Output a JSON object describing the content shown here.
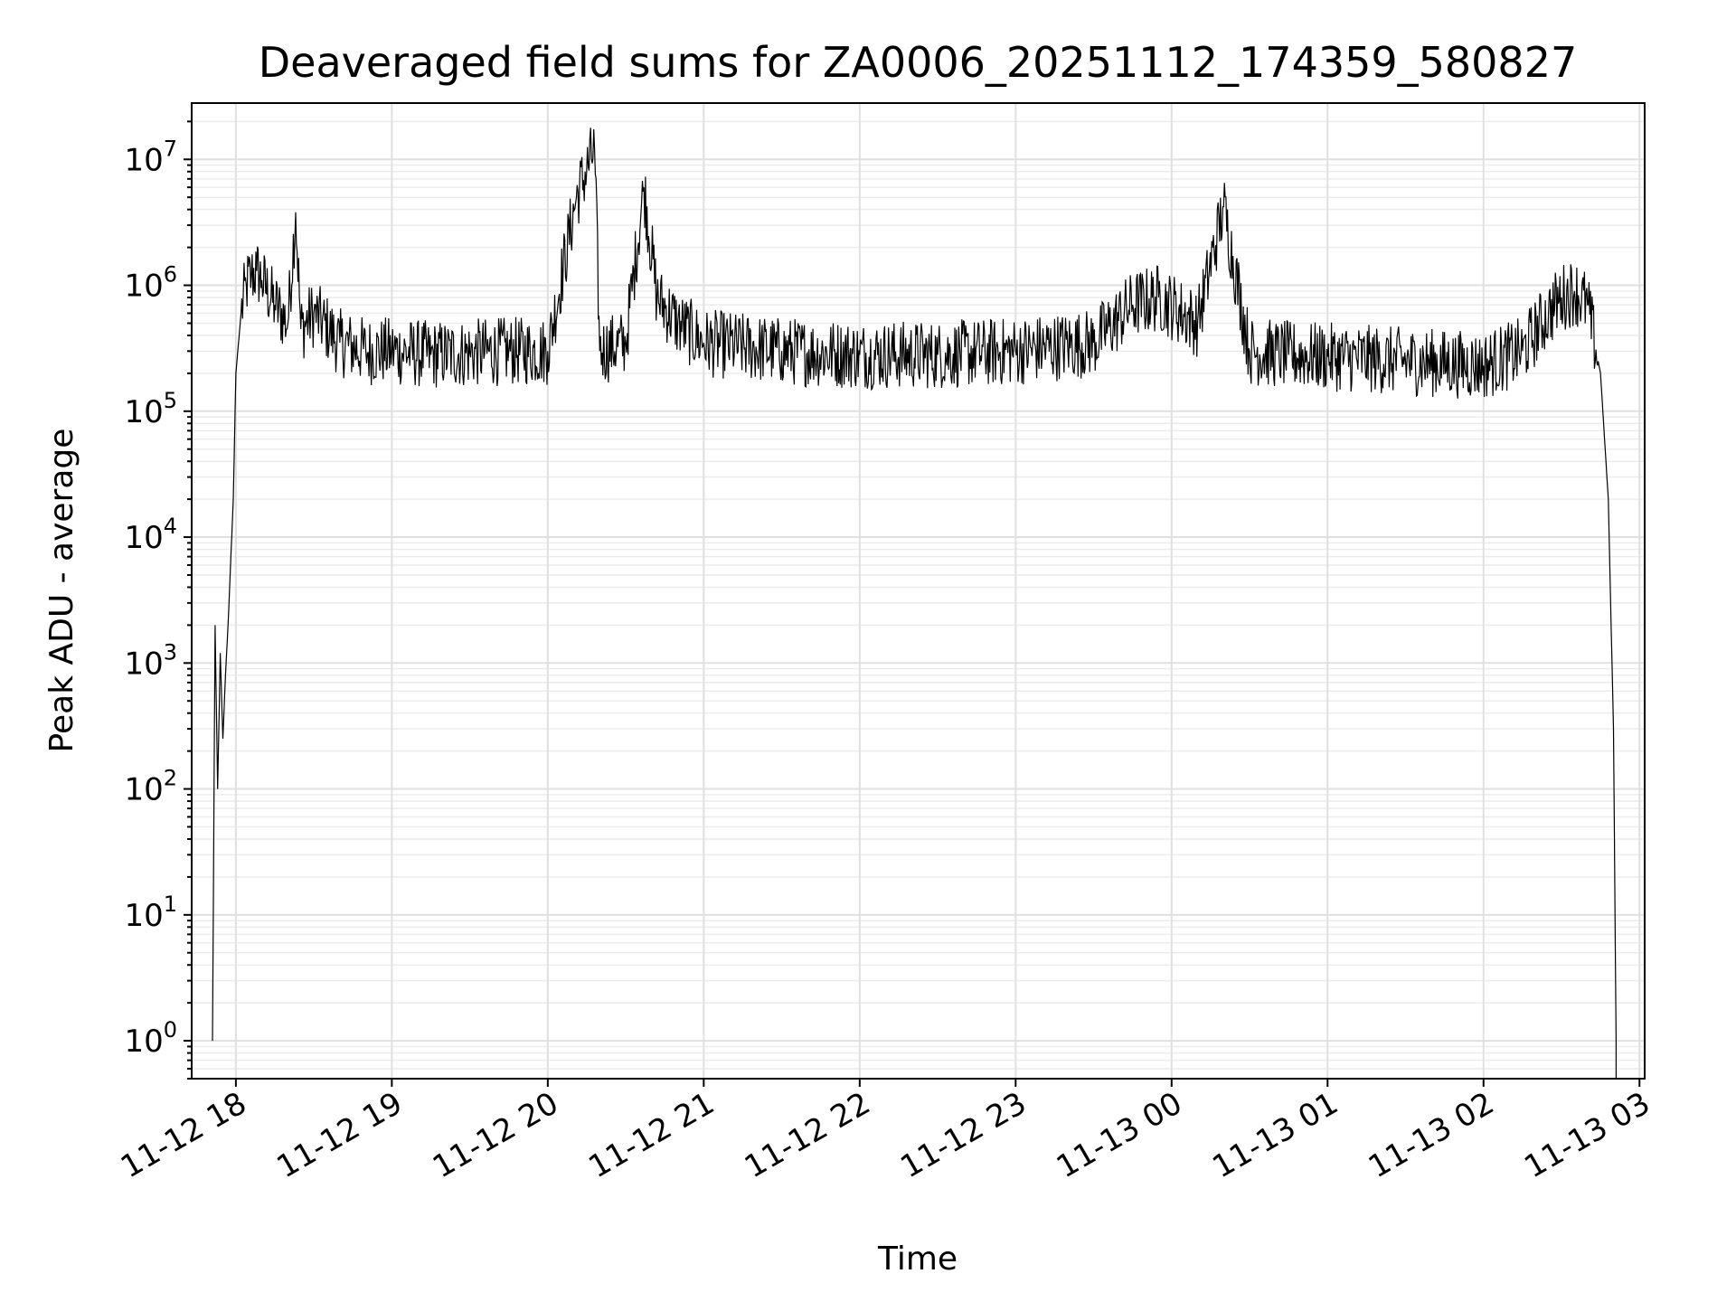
{
  "chart_data": {
    "type": "line",
    "title": "Deaveraged field sums for ZA0006_20251112_174359_580827",
    "xlabel": "Time",
    "ylabel": "Peak ADU - average",
    "yscale": "log",
    "xlim": [
      "2025-11-12 17:43",
      "2025-11-13 03:02"
    ],
    "ylim": [
      0.5,
      28000000
    ],
    "grid": true,
    "x_ticks": [
      "11-12 18",
      "11-12 19",
      "11-12 20",
      "11-12 21",
      "11-12 22",
      "11-12 23",
      "11-13 00",
      "11-13 01",
      "11-13 02",
      "11-13 03"
    ],
    "y_ticks": [
      {
        "base": "10",
        "exp": "0",
        "value": 1
      },
      {
        "base": "10",
        "exp": "1",
        "value": 10
      },
      {
        "base": "10",
        "exp": "2",
        "value": 100
      },
      {
        "base": "10",
        "exp": "3",
        "value": 1000
      },
      {
        "base": "10",
        "exp": "4",
        "value": 10000
      },
      {
        "base": "10",
        "exp": "5",
        "value": 100000
      },
      {
        "base": "10",
        "exp": "6",
        "value": 1000000
      },
      {
        "base": "10",
        "exp": "7",
        "value": 10000000
      }
    ],
    "line_color": "#000000",
    "series": [
      {
        "x": [
          "2025-11-12 17:51",
          "2025-11-12 17:52",
          "2025-11-12 17:53",
          "2025-11-12 17:54",
          "2025-11-12 17:55",
          "2025-11-12 17:56",
          "2025-11-12 17:57",
          "2025-11-12 17:59",
          "2025-11-12 18:00",
          "2025-11-12 18:02",
          "2025-11-12 18:04",
          "2025-11-12 18:06",
          "2025-11-12 18:08",
          "2025-11-12 18:10",
          "2025-11-12 18:15",
          "2025-11-12 18:20",
          "2025-11-12 18:23",
          "2025-11-12 18:25",
          "2025-11-12 18:30",
          "2025-11-12 18:40",
          "2025-11-12 18:50",
          "2025-11-12 19:00",
          "2025-11-12 19:15",
          "2025-11-12 19:30",
          "2025-11-12 19:45",
          "2025-11-12 20:00",
          "2025-11-12 20:11",
          "2025-11-12 20:18",
          "2025-11-12 20:20",
          "2025-11-12 20:30",
          "2025-11-12 20:37",
          "2025-11-12 20:42",
          "2025-11-12 20:50",
          "2025-11-12 21:00",
          "2025-11-12 21:30",
          "2025-11-12 22:00",
          "2025-11-12 22:30",
          "2025-11-12 23:00",
          "2025-11-12 23:30",
          "2025-11-12 23:45",
          "2025-11-12 23:55",
          "2025-11-13 00:10",
          "2025-11-13 00:20",
          "2025-11-13 00:30",
          "2025-11-13 00:45",
          "2025-11-13 01:00",
          "2025-11-13 01:30",
          "2025-11-13 02:00",
          "2025-11-13 02:15",
          "2025-11-13 02:25",
          "2025-11-13 02:30",
          "2025-11-13 02:35",
          "2025-11-13 02:40",
          "2025-11-13 02:45",
          "2025-11-13 02:48",
          "2025-11-13 02:50",
          "2025-11-13 02:51"
        ],
        "y": [
          1,
          2000,
          100,
          1200,
          250,
          800,
          2000,
          20000,
          200000,
          600000,
          1000000,
          1200000,
          1300000,
          1100000,
          700000,
          500000,
          3800000,
          450000,
          600000,
          350000,
          300000,
          300000,
          280000,
          290000,
          300000,
          300000,
          5000000,
          12000000,
          300000,
          350000,
          6000000,
          800000,
          500000,
          350000,
          300000,
          280000,
          280000,
          300000,
          350000,
          700000,
          800000,
          500000,
          4200000,
          300000,
          280000,
          270000,
          250000,
          230000,
          300000,
          600000,
          800000,
          900000,
          700000,
          200000,
          20000,
          300,
          1
        ]
      }
    ]
  }
}
